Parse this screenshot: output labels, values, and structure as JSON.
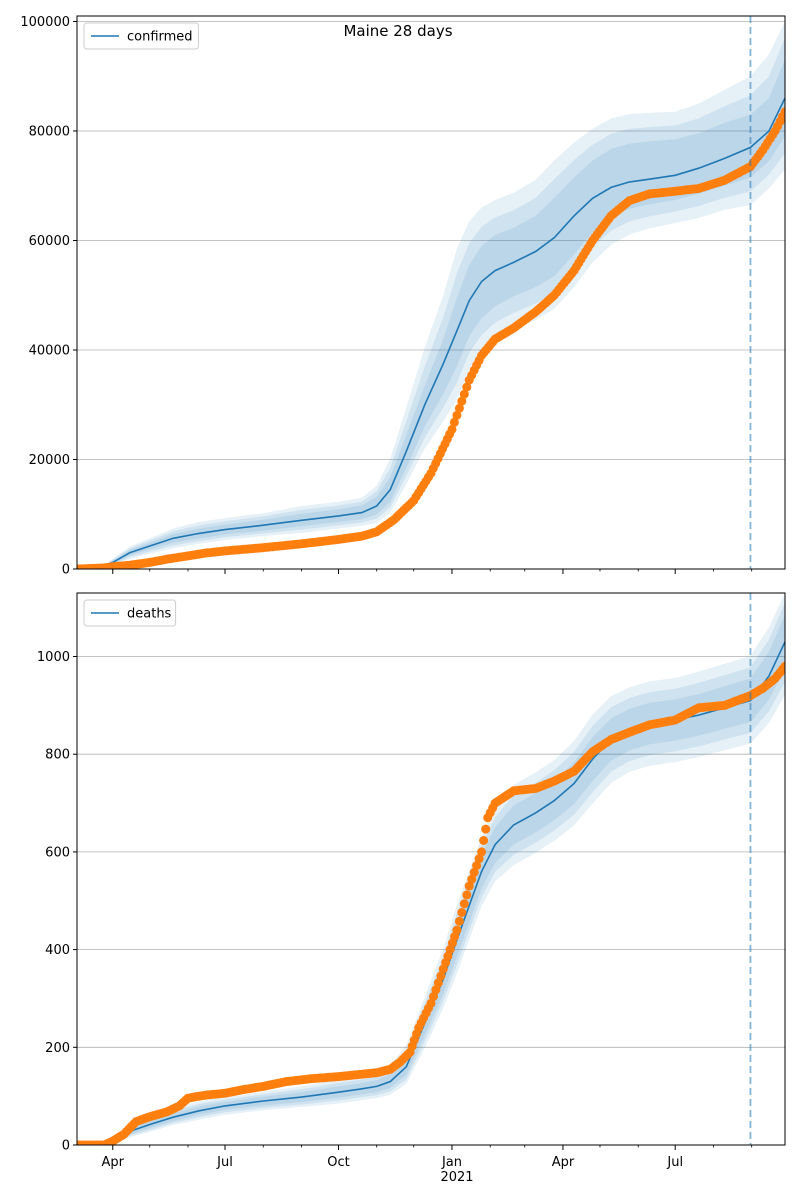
{
  "figure": {
    "title": "Maine 28 days"
  },
  "x_axis": {
    "tick_labels": [
      "Apr",
      "Jul",
      "Oct",
      "Jan",
      "Apr",
      "Jul"
    ],
    "tick_dates": [
      "2020-04-01",
      "2020-07-01",
      "2020-10-01",
      "2021-01-01",
      "2021-04-01",
      "2021-07-01"
    ],
    "year_label": "2021",
    "xlim": [
      "2020-03-03",
      "2021-09-28"
    ],
    "minor_ticks": [
      "2020-03-01",
      "2020-05-01",
      "2020-06-01",
      "2020-08-01",
      "2020-09-01",
      "2020-11-01",
      "2020-12-01",
      "2021-02-01",
      "2021-03-01",
      "2021-05-01",
      "2021-06-01",
      "2021-08-01",
      "2021-09-01"
    ]
  },
  "forecast_start": "2021-08-31",
  "colors": {
    "model": "#1f77b4",
    "observed": "#ff7f0e",
    "band": "#1f77b4",
    "grid": "#b0b0b0"
  },
  "chart_data": [
    {
      "type": "line",
      "title": "Maine 28 days",
      "legend": {
        "label": "confirmed",
        "placement": "top-left"
      },
      "ylim": [
        0,
        101000
      ],
      "yticks": [
        0,
        20000,
        40000,
        60000,
        80000,
        100000
      ],
      "ytick_labels": [
        "0",
        "20000",
        "40000",
        "60000",
        "80000",
        "100000"
      ],
      "grid": "horizontal",
      "model": {
        "dates": [
          "2020-03-03",
          "2020-03-20",
          "2020-04-01",
          "2020-04-15",
          "2020-05-01",
          "2020-05-20",
          "2020-06-10",
          "2020-07-01",
          "2020-08-01",
          "2020-09-01",
          "2020-10-01",
          "2020-10-20",
          "2020-11-01",
          "2020-11-12",
          "2020-11-25",
          "2020-12-10",
          "2020-12-25",
          "2021-01-05",
          "2021-01-15",
          "2021-01-25",
          "2021-02-05",
          "2021-02-20",
          "2021-03-10",
          "2021-03-25",
          "2021-04-10",
          "2021-04-25",
          "2021-05-10",
          "2021-05-25",
          "2021-06-10",
          "2021-07-01",
          "2021-07-20",
          "2021-08-10",
          "2021-08-31",
          "2021-09-15",
          "2021-09-28"
        ],
        "values": [
          0,
          0,
          1200,
          3000,
          4200,
          5600,
          6500,
          7200,
          8000,
          8900,
          9700,
          10300,
          11500,
          14500,
          21500,
          30000,
          37500,
          43500,
          49000,
          52500,
          54500,
          56000,
          58000,
          60500,
          64500,
          67700,
          69700,
          70700,
          71200,
          71900,
          73200,
          75000,
          77000,
          80000,
          86000
        ],
        "bands": [
          {
            "lower": [
              0,
              0,
              900,
              2500,
              3600,
              4800,
              5600,
              6300,
              7000,
              7800,
              8600,
              9100,
              10000,
              12300,
              18500,
              26000,
              32000,
              37000,
              42500,
              45800,
              48000,
              49800,
              51500,
              53500,
              57500,
              61500,
              64300,
              65800,
              66600,
              67400,
              68500,
              70000,
              71500,
              74500,
              79000
            ],
            "upper": [
              0,
              0,
              1500,
              3500,
              4800,
              6400,
              7400,
              8100,
              9000,
              10100,
              10900,
              11600,
              13200,
              16800,
              24500,
              33500,
              42000,
              49500,
              55500,
              59000,
              61000,
              62300,
              64500,
              67800,
              71500,
              74600,
              76700,
              77700,
              78100,
              78500,
              79600,
              81500,
              83000,
              86000,
              93000
            ]
          },
          {
            "lower": [
              0,
              0,
              700,
              2200,
              3200,
              4300,
              5100,
              5800,
              6500,
              7200,
              8000,
              8500,
              9200,
              11300,
              17000,
              24000,
              29500,
              34000,
              39500,
              42800,
              45000,
              46800,
              48500,
              50500,
              54500,
              58800,
              61800,
              63500,
              64400,
              65300,
              66300,
              67800,
              69000,
              72000,
              76000
            ],
            "upper": [
              0,
              0,
              1700,
              3800,
              5200,
              6900,
              8000,
              8700,
              9600,
              10800,
              11600,
              12300,
              14200,
              18500,
              27000,
              37000,
              46000,
              54000,
              59500,
              62500,
              64200,
              65500,
              67800,
              71200,
              74700,
              77500,
              79500,
              80400,
              80700,
              81000,
              82300,
              84500,
              86500,
              90000,
              97000
            ]
          },
          {
            "lower": [
              0,
              0,
              500,
              1900,
              2800,
              3800,
              4600,
              5300,
              6000,
              6600,
              7400,
              7900,
              8400,
              10300,
              15500,
              22000,
              27000,
              31000,
              36500,
              39800,
              42000,
              43800,
              45500,
              47500,
              51500,
              56000,
              59200,
              61100,
              62200,
              63200,
              64100,
              65600,
              66500,
              69500,
              73000
            ],
            "upper": [
              0,
              0,
              1900,
              4100,
              5600,
              7400,
              8600,
              9300,
              10200,
              11500,
              12300,
              13000,
              15200,
              20200,
              29500,
              40500,
              50000,
              58500,
              63500,
              66000,
              67400,
              68700,
              71100,
              74600,
              77900,
              80400,
              82300,
              83100,
              83300,
              83500,
              85000,
              87500,
              90000,
              94000,
              100000
            ]
          }
        ]
      },
      "observed": {
        "dates": [
          "2020-03-03",
          "2020-03-25",
          "2020-04-01",
          "2020-04-15",
          "2020-05-01",
          "2020-05-15",
          "2020-06-01",
          "2020-06-15",
          "2020-07-01",
          "2020-08-01",
          "2020-09-01",
          "2020-10-01",
          "2020-10-20",
          "2020-11-01",
          "2020-11-15",
          "2020-12-01",
          "2020-12-15",
          "2021-01-01",
          "2021-01-15",
          "2021-01-25",
          "2021-02-05",
          "2021-02-20",
          "2021-03-10",
          "2021-03-25",
          "2021-04-10",
          "2021-04-25",
          "2021-05-10",
          "2021-05-25",
          "2021-06-10",
          "2021-07-01",
          "2021-07-20",
          "2021-08-10",
          "2021-08-31",
          "2021-09-10",
          "2021-09-20",
          "2021-09-28"
        ],
        "values": [
          0,
          200,
          400,
          700,
          1200,
          1800,
          2400,
          2900,
          3300,
          3900,
          4600,
          5400,
          6000,
          6800,
          9000,
          12500,
          17500,
          25500,
          34500,
          39000,
          42000,
          44000,
          47000,
          50000,
          54500,
          60000,
          64500,
          67300,
          68500,
          69000,
          69500,
          71000,
          73500,
          76500,
          80000,
          83500
        ]
      }
    },
    {
      "type": "line",
      "legend": {
        "label": "deaths",
        "placement": "top-left"
      },
      "ylim": [
        0,
        1130
      ],
      "yticks": [
        0,
        200,
        400,
        600,
        800,
        1000
      ],
      "ytick_labels": [
        "0",
        "200",
        "400",
        "600",
        "800",
        "1000"
      ],
      "grid": "horizontal",
      "model": {
        "dates": [
          "2020-03-03",
          "2020-03-25",
          "2020-04-01",
          "2020-04-15",
          "2020-05-01",
          "2020-05-20",
          "2020-06-10",
          "2020-07-01",
          "2020-08-01",
          "2020-09-01",
          "2020-10-01",
          "2020-10-20",
          "2020-11-01",
          "2020-11-12",
          "2020-11-25",
          "2020-12-10",
          "2020-12-25",
          "2021-01-05",
          "2021-01-15",
          "2021-01-25",
          "2021-02-05",
          "2021-02-20",
          "2021-03-10",
          "2021-03-25",
          "2021-04-10",
          "2021-04-25",
          "2021-05-10",
          "2021-05-25",
          "2021-06-10",
          "2021-07-01",
          "2021-07-20",
          "2021-08-10",
          "2021-08-31",
          "2021-09-15",
          "2021-09-28"
        ],
        "values": [
          0,
          0,
          5,
          28,
          42,
          57,
          70,
          80,
          90,
          98,
          108,
          115,
          120,
          130,
          160,
          250,
          340,
          420,
          490,
          560,
          615,
          655,
          680,
          705,
          740,
          790,
          830,
          850,
          862,
          870,
          880,
          895,
          910,
          960,
          1030
        ],
        "bands": [
          {
            "lower": [
              0,
              0,
              2,
              22,
              35,
              49,
              62,
              72,
              81,
              88,
              97,
              104,
              108,
              117,
              143,
              225,
              310,
              385,
              455,
              525,
              578,
              615,
              640,
              665,
              698,
              745,
              787,
              808,
              820,
              828,
              838,
              852,
              866,
              912,
              975
            ],
            "upper": [
              0,
              0,
              8,
              34,
              49,
              65,
              79,
              88,
              99,
              108,
              120,
              127,
              133,
              145,
              180,
              276,
              370,
              456,
              525,
              595,
              651,
              695,
              721,
              746,
              783,
              835,
              873,
              893,
              905,
              912,
              923,
              939,
              955,
              1010,
              1085
            ]
          },
          {
            "lower": [
              0,
              0,
              1,
              19,
              31,
              45,
              57,
              67,
              76,
              83,
              91,
              98,
              102,
              110,
              134,
              212,
              295,
              368,
              438,
              507,
              559,
              594,
              619,
              644,
              676,
              722,
              764,
              786,
              798,
              806,
              816,
              830,
              844,
              888,
              948
            ],
            "upper": [
              0,
              0,
              9,
              37,
              53,
              70,
              84,
              93,
              104,
              114,
              127,
              134,
              140,
              154,
              192,
              290,
              386,
              474,
              543,
              613,
              671,
              716,
              742,
              767,
              805,
              858,
              896,
              915,
              927,
              934,
              946,
              962,
              978,
              1035,
              1110
            ]
          },
          {
            "lower": [
              0,
              0,
              0,
              16,
              27,
              41,
              52,
              62,
              71,
              78,
              85,
              92,
              96,
              103,
              125,
              199,
              280,
              351,
              421,
              489,
              540,
              573,
              598,
              623,
              654,
              699,
              741,
              764,
              776,
              784,
              794,
              808,
              822,
              864,
              921
            ],
            "upper": [
              0,
              0,
              10,
              40,
              57,
              75,
              89,
              98,
              109,
              120,
              134,
              141,
              147,
              163,
              204,
              304,
              402,
              492,
              561,
              631,
              691,
              737,
              763,
              788,
              827,
              881,
              919,
              937,
              949,
              956,
              969,
              985,
              1001,
              1060,
              1130
            ]
          }
        ]
      },
      "observed": {
        "dates": [
          "2020-03-03",
          "2020-03-25",
          "2020-04-01",
          "2020-04-10",
          "2020-04-20",
          "2020-05-01",
          "2020-05-15",
          "2020-05-25",
          "2020-06-01",
          "2020-06-15",
          "2020-07-01",
          "2020-07-15",
          "2020-08-01",
          "2020-08-20",
          "2020-09-10",
          "2020-10-01",
          "2020-10-20",
          "2020-11-01",
          "2020-11-12",
          "2020-11-20",
          "2020-11-28",
          "2020-12-05",
          "2020-12-15",
          "2020-12-25",
          "2021-01-05",
          "2021-01-15",
          "2021-01-25",
          "2021-01-30",
          "2021-02-05",
          "2021-02-20",
          "2021-03-10",
          "2021-03-25",
          "2021-04-10",
          "2021-04-25",
          "2021-05-10",
          "2021-05-25",
          "2021-06-10",
          "2021-07-01",
          "2021-07-20",
          "2021-08-10",
          "2021-08-31",
          "2021-09-10",
          "2021-09-20",
          "2021-09-28"
        ],
        "values": [
          0,
          0,
          8,
          22,
          48,
          58,
          68,
          80,
          96,
          102,
          106,
          113,
          120,
          130,
          136,
          140,
          145,
          148,
          155,
          170,
          190,
          240,
          290,
          360,
          440,
          530,
          600,
          670,
          700,
          725,
          730,
          745,
          765,
          805,
          830,
          845,
          860,
          870,
          895,
          900,
          920,
          935,
          955,
          980
        ]
      }
    }
  ]
}
